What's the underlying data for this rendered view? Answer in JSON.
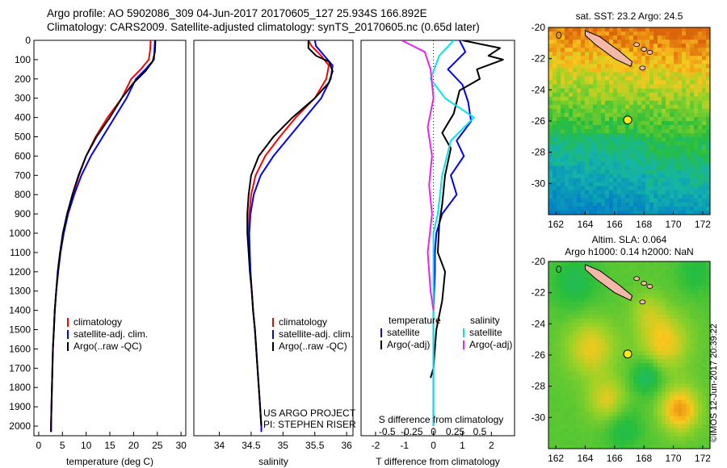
{
  "header": {
    "title_line1": "Argo profile: AO 5902086_309 04-Jun-2017 20170605_127 25.934S 166.892E",
    "title_line2": "Climatology: CARS2009. Satellite-adjusted climatology: synTS_20170605.nc (0.65d later)"
  },
  "side_stamp": "©IMOS 12-Jun-2017 20:39:22",
  "colors": {
    "climatology": "#ff0000",
    "satellite": "#0000ff",
    "argo": "#000000",
    "salinity_satellite": "#00e5ee",
    "salinity_argo": "#ee22ee",
    "land": "#f4b8a8",
    "float_marker": "#ffee00"
  },
  "chart_data": [
    {
      "type": "line",
      "id": "temperature",
      "xlabel": "temperature (deg C)",
      "ylabel": "",
      "xlim": [
        -1,
        31
      ],
      "ylim": [
        2050,
        0
      ],
      "xticks": [
        0,
        5,
        10,
        15,
        20,
        25,
        30
      ],
      "yticks": [
        0,
        100,
        200,
        300,
        400,
        500,
        600,
        700,
        800,
        900,
        1000,
        1100,
        1200,
        1300,
        1400,
        1500,
        1600,
        1700,
        1800,
        1900,
        2000
      ],
      "legend": [
        "climatology",
        "satellite-adj. clim.",
        "Argo(..raw -QC)"
      ],
      "legend_position": "lower-center",
      "series": [
        {
          "name": "climatology",
          "color": "#ff0000",
          "points": [
            [
              23.6,
              0
            ],
            [
              23.5,
              50
            ],
            [
              23.2,
              100
            ],
            [
              21.5,
              150
            ],
            [
              19.5,
              200
            ],
            [
              17.5,
              300
            ],
            [
              14.5,
              400
            ],
            [
              12,
              500
            ],
            [
              10,
              600
            ],
            [
              8.5,
              700
            ],
            [
              7.2,
              800
            ],
            [
              6,
              900
            ],
            [
              5.2,
              1000
            ],
            [
              4.6,
              1100
            ],
            [
              4.1,
              1200
            ],
            [
              3.7,
              1300
            ],
            [
              3.4,
              1400
            ],
            [
              3.2,
              1500
            ],
            [
              3,
              1600
            ],
            [
              2.9,
              1700
            ],
            [
              2.8,
              1800
            ],
            [
              2.7,
              1900
            ],
            [
              2.6,
              2000
            ],
            [
              2.6,
              2030
            ]
          ]
        },
        {
          "name": "satellite-adj. clim.",
          "color": "#0000ff",
          "points": [
            [
              24.5,
              0
            ],
            [
              24.4,
              50
            ],
            [
              24.3,
              100
            ],
            [
              22.5,
              150
            ],
            [
              20.5,
              200
            ],
            [
              18.5,
              300
            ],
            [
              16,
              400
            ],
            [
              13.5,
              500
            ],
            [
              11,
              600
            ],
            [
              9,
              700
            ],
            [
              7.5,
              800
            ],
            [
              6.2,
              900
            ],
            [
              5.3,
              1000
            ],
            [
              4.6,
              1100
            ],
            [
              4.1,
              1200
            ],
            [
              3.7,
              1300
            ],
            [
              3.4,
              1400
            ],
            [
              3.2,
              1500
            ],
            [
              3,
              1600
            ],
            [
              2.9,
              1700
            ],
            [
              2.8,
              1800
            ],
            [
              2.7,
              1900
            ],
            [
              2.6,
              2000
            ],
            [
              2.6,
              2030
            ]
          ]
        },
        {
          "name": "Argo(..raw -QC)",
          "color": "#000000",
          "points": [
            [
              24.6,
              0
            ],
            [
              24.5,
              60
            ],
            [
              24,
              110
            ],
            [
              22.5,
              160
            ],
            [
              20,
              220
            ],
            [
              17.5,
              300
            ],
            [
              15,
              400
            ],
            [
              12.2,
              500
            ],
            [
              10,
              600
            ],
            [
              8.4,
              700
            ],
            [
              7.1,
              800
            ],
            [
              6,
              900
            ],
            [
              5.1,
              1000
            ],
            [
              4.5,
              1100
            ],
            [
              4,
              1200
            ],
            [
              3.7,
              1300
            ],
            [
              3.4,
              1400
            ],
            [
              3.2,
              1500
            ],
            [
              3,
              1600
            ],
            [
              2.9,
              1700
            ],
            [
              2.8,
              1800
            ],
            [
              2.7,
              1900
            ],
            [
              2.6,
              2000
            ],
            [
              2.6,
              2030
            ]
          ]
        }
      ]
    },
    {
      "type": "line",
      "id": "salinity",
      "xlabel": "salinity",
      "xlim": [
        33.6,
        36.1
      ],
      "ylim": [
        2050,
        0
      ],
      "xticks": [
        34,
        34.5,
        35,
        35.5,
        36
      ],
      "legend": [
        "climatology",
        "satellite-adj. clim.",
        "Argo(..raw -QC)"
      ],
      "legend_position": "lower-right",
      "annotation": [
        "US ARGO PROJECT",
        "PI: STEPHEN RISER"
      ],
      "series": [
        {
          "name": "climatology",
          "color": "#ff0000",
          "points": [
            [
              35.4,
              0
            ],
            [
              35.45,
              30
            ],
            [
              35.6,
              80
            ],
            [
              35.72,
              130
            ],
            [
              35.68,
              200
            ],
            [
              35.5,
              300
            ],
            [
              35.2,
              400
            ],
            [
              34.95,
              500
            ],
            [
              34.72,
              600
            ],
            [
              34.57,
              700
            ],
            [
              34.5,
              800
            ],
            [
              34.47,
              900
            ],
            [
              34.46,
              1000
            ],
            [
              34.47,
              1100
            ],
            [
              34.49,
              1200
            ],
            [
              34.51,
              1300
            ],
            [
              34.53,
              1400
            ],
            [
              34.56,
              1500
            ],
            [
              34.58,
              1600
            ],
            [
              34.6,
              1700
            ],
            [
              34.62,
              1800
            ],
            [
              34.64,
              1900
            ],
            [
              34.66,
              2000
            ],
            [
              34.66,
              2030
            ]
          ]
        },
        {
          "name": "satellite-adj. clim.",
          "color": "#0000ff",
          "points": [
            [
              35.5,
              0
            ],
            [
              35.52,
              30
            ],
            [
              35.65,
              80
            ],
            [
              35.78,
              130
            ],
            [
              35.75,
              200
            ],
            [
              35.6,
              300
            ],
            [
              35.35,
              400
            ],
            [
              35.1,
              500
            ],
            [
              34.85,
              600
            ],
            [
              34.65,
              700
            ],
            [
              34.54,
              800
            ],
            [
              34.49,
              900
            ],
            [
              34.47,
              1000
            ],
            [
              34.48,
              1100
            ],
            [
              34.49,
              1200
            ],
            [
              34.51,
              1300
            ],
            [
              34.53,
              1400
            ],
            [
              34.56,
              1500
            ],
            [
              34.58,
              1600
            ],
            [
              34.6,
              1700
            ],
            [
              34.62,
              1800
            ],
            [
              34.64,
              1900
            ],
            [
              34.66,
              2000
            ],
            [
              34.66,
              2030
            ]
          ]
        },
        {
          "name": "Argo(..raw -QC)",
          "color": "#000000",
          "points": [
            [
              35.4,
              0
            ],
            [
              35.4,
              40
            ],
            [
              35.52,
              80
            ],
            [
              35.72,
              110
            ],
            [
              35.78,
              160
            ],
            [
              35.72,
              220
            ],
            [
              35.5,
              300
            ],
            [
              35.15,
              400
            ],
            [
              34.85,
              500
            ],
            [
              34.62,
              600
            ],
            [
              34.5,
              700
            ],
            [
              34.46,
              800
            ],
            [
              34.44,
              900
            ],
            [
              34.44,
              1000
            ],
            [
              34.46,
              1100
            ],
            [
              34.48,
              1200
            ],
            [
              34.51,
              1300
            ],
            [
              34.53,
              1400
            ],
            [
              34.56,
              1500
            ],
            [
              34.58,
              1600
            ],
            [
              34.6,
              1700
            ],
            [
              34.62,
              1800
            ],
            [
              34.64,
              1900
            ],
            [
              34.66,
              2000
            ]
          ]
        }
      ]
    },
    {
      "type": "line",
      "id": "differences",
      "xlabel": "T difference from climatology",
      "xlabel_top": "S difference from climatology",
      "xlim": [
        -2.5,
        2.8
      ],
      "ylim": [
        2050,
        0
      ],
      "xticks": [
        -2,
        -1,
        0,
        1,
        2
      ],
      "secondary_xticks": [
        {
          "label": "-0.5",
          "x": -1.6
        },
        {
          "label": "-0.25",
          "x": -0.75
        },
        {
          "label": "0",
          "x": 0
        },
        {
          "label": "0.25",
          "x": 0.75
        },
        {
          "label": "0.5",
          "x": 1.6
        }
      ],
      "legend_left_title": "temperature",
      "legend_right_title": "salinity",
      "legend": [
        "satellite",
        "Argo(-adj)",
        "satellite",
        "Argo(-adj)"
      ],
      "legend_position": "lower-center",
      "series": [
        {
          "name": "temperature satellite",
          "color": "#0000ff",
          "points": [
            [
              0.9,
              0
            ],
            [
              1.1,
              60
            ],
            [
              0.5,
              150
            ],
            [
              1,
              230
            ],
            [
              1.2,
              320
            ],
            [
              1.3,
              420
            ],
            [
              0.8,
              520
            ],
            [
              1.05,
              600
            ],
            [
              0.6,
              700
            ],
            [
              0.8,
              800
            ],
            [
              0.3,
              900
            ],
            [
              0.1,
              1000
            ],
            [
              0.05,
              1100
            ],
            [
              0.05,
              1200
            ],
            [
              0,
              1400
            ],
            [
              0,
              1600
            ],
            [
              0,
              1800
            ],
            [
              0,
              2000
            ]
          ]
        },
        {
          "name": "temperature Argo(-adj)",
          "color": "#000000",
          "points": [
            [
              1,
              0
            ],
            [
              2.3,
              40
            ],
            [
              1.9,
              80
            ],
            [
              2.4,
              100
            ],
            [
              1.5,
              150
            ],
            [
              1.6,
              200
            ],
            [
              0.9,
              260
            ],
            [
              0.7,
              380
            ],
            [
              0.3,
              480
            ],
            [
              0.6,
              560
            ],
            [
              0.4,
              700
            ],
            [
              0.3,
              850
            ],
            [
              0.2,
              950
            ],
            [
              0.15,
              1100
            ],
            [
              0.4,
              1200
            ],
            [
              0.3,
              1350
            ],
            [
              0.1,
              1500
            ],
            [
              0,
              1700
            ],
            [
              -0.1,
              1750
            ]
          ]
        },
        {
          "name": "salinity satellite",
          "color": "#00e5ee",
          "points": [
            [
              0.7,
              0
            ],
            [
              0.2,
              80
            ],
            [
              -0.1,
              200
            ],
            [
              0.4,
              300
            ],
            [
              1.4,
              400
            ],
            [
              0.6,
              520
            ],
            [
              0.3,
              700
            ],
            [
              0.15,
              900
            ],
            [
              0,
              1000
            ],
            [
              0,
              1300
            ],
            [
              0,
              1600
            ],
            [
              0,
              1900
            ],
            [
              0,
              2000
            ]
          ]
        },
        {
          "name": "salinity Argo(-adj)",
          "color": "#ee22ee",
          "points": [
            [
              -1.1,
              0
            ],
            [
              -0.3,
              60
            ],
            [
              -0.1,
              150
            ],
            [
              0,
              300
            ],
            [
              -0.2,
              450
            ],
            [
              -0.05,
              600
            ],
            [
              -0.15,
              750
            ],
            [
              -0.05,
              900
            ],
            [
              -0.2,
              1100
            ],
            [
              -0.1,
              1300
            ],
            [
              0,
              1400
            ]
          ]
        }
      ]
    },
    {
      "type": "heatmap",
      "id": "sst_map",
      "title": "sat. SST: 23.2 Argo: 24.5",
      "xlim": [
        161.5,
        172.5
      ],
      "ylim": [
        -32,
        -20
      ],
      "xticks": [
        162,
        164,
        166,
        168,
        170,
        172
      ],
      "yticks": [
        -20,
        -22,
        -24,
        -26,
        -28,
        -30
      ],
      "marker": [
        166.892,
        -25.934
      ]
    },
    {
      "type": "heatmap",
      "id": "sla_map",
      "title_line1": "Altim. SLA: 0.064",
      "title_line2": "Argo h1000: 0.14 h2000: NaN",
      "xlim": [
        161.5,
        172.5
      ],
      "ylim": [
        -32,
        -20
      ],
      "xticks": [
        162,
        164,
        166,
        168,
        170,
        172
      ],
      "yticks": [
        -20,
        -22,
        -24,
        -26,
        -28,
        -30
      ],
      "marker": [
        166.892,
        -25.934
      ]
    }
  ]
}
